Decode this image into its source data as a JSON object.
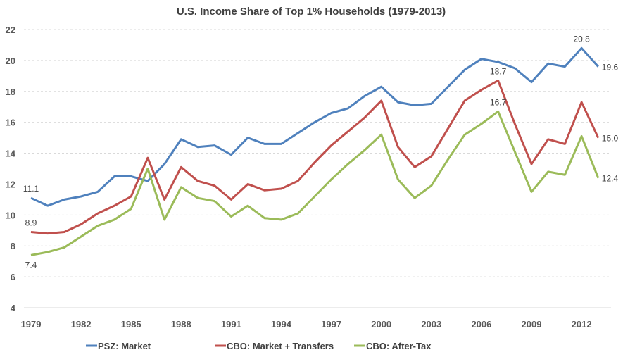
{
  "chart_data": {
    "type": "line",
    "title": "U.S. Income Share of Top 1% Households (1979-2013)",
    "xlabel": "",
    "ylabel": "",
    "ylim": [
      4,
      22
    ],
    "yticks": [
      "4",
      "6",
      "8",
      "10",
      "12",
      "14",
      "16",
      "18",
      "20",
      "22"
    ],
    "xticks": [
      "1979",
      "1982",
      "1985",
      "1988",
      "1991",
      "1994",
      "1997",
      "2000",
      "2003",
      "2006",
      "2009",
      "2012"
    ],
    "grid": true,
    "legend_position": "bottom",
    "x": [
      1979,
      1980,
      1981,
      1982,
      1983,
      1984,
      1985,
      1986,
      1987,
      1988,
      1989,
      1990,
      1991,
      1992,
      1993,
      1994,
      1995,
      1996,
      1997,
      1998,
      1999,
      2000,
      2001,
      2002,
      2003,
      2004,
      2005,
      2006,
      2007,
      2008,
      2009,
      2010,
      2011,
      2012,
      2013
    ],
    "series": [
      {
        "name": "PSZ: Market",
        "color": "#4f81bd",
        "values": [
          11.1,
          10.6,
          11.0,
          11.2,
          11.5,
          12.5,
          12.5,
          12.2,
          13.3,
          14.9,
          14.4,
          14.5,
          13.9,
          15.0,
          14.6,
          14.6,
          15.3,
          16.0,
          16.6,
          16.9,
          17.7,
          18.3,
          17.3,
          17.1,
          17.2,
          18.3,
          19.4,
          20.1,
          19.9,
          19.5,
          18.6,
          19.8,
          19.6,
          20.8,
          19.6
        ],
        "labels": [
          {
            "year": 1979,
            "text": "11.1",
            "pos": "above"
          },
          {
            "year": 2012,
            "text": "20.8",
            "pos": "above"
          },
          {
            "year": 2013,
            "text": "19.6",
            "pos": "right"
          }
        ]
      },
      {
        "name": "CBO: Market + Transfers",
        "color": "#c0504d",
        "values": [
          8.9,
          8.8,
          8.9,
          9.4,
          10.1,
          10.6,
          11.2,
          13.7,
          11.0,
          13.1,
          12.2,
          11.9,
          11.0,
          12.0,
          11.6,
          11.7,
          12.2,
          13.4,
          14.5,
          15.4,
          16.3,
          17.4,
          14.4,
          13.1,
          13.8,
          15.6,
          17.4,
          18.1,
          18.7,
          15.9,
          13.3,
          14.9,
          14.6,
          17.3,
          15.0
        ],
        "labels": [
          {
            "year": 1979,
            "text": "8.9",
            "pos": "above"
          },
          {
            "year": 2007,
            "text": "18.7",
            "pos": "above"
          },
          {
            "year": 2013,
            "text": "15.0",
            "pos": "right"
          }
        ]
      },
      {
        "name": "CBO: After-Tax",
        "color": "#9bbb59",
        "values": [
          7.4,
          7.6,
          7.9,
          8.6,
          9.3,
          9.7,
          10.4,
          13.0,
          9.7,
          11.8,
          11.1,
          10.9,
          9.9,
          10.6,
          9.8,
          9.7,
          10.1,
          11.2,
          12.3,
          13.3,
          14.2,
          15.2,
          12.3,
          11.1,
          11.9,
          13.6,
          15.2,
          15.9,
          16.7,
          14.1,
          11.5,
          12.8,
          12.6,
          15.1,
          12.4
        ],
        "labels": [
          {
            "year": 1979,
            "text": "7.4",
            "pos": "below"
          },
          {
            "year": 2007,
            "text": "16.7",
            "pos": "above"
          },
          {
            "year": 2013,
            "text": "12.4",
            "pos": "right"
          }
        ]
      }
    ]
  }
}
